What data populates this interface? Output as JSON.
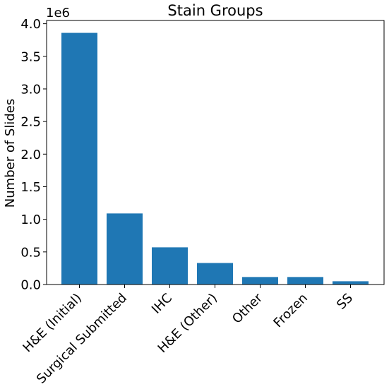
{
  "chart_data": {
    "type": "bar",
    "title": "Stain Groups",
    "xlabel": "",
    "ylabel": "Number of Slides",
    "y_offset_label": "1e6",
    "y_scale": 1000000,
    "ylim": [
      0,
      4.05
    ],
    "yticks": [
      0.0,
      0.5,
      1.0,
      1.5,
      2.0,
      2.5,
      3.0,
      3.5,
      4.0
    ],
    "categories": [
      "H&E (Initial)",
      "Surgical Submitted",
      "IHC",
      "H&E (Other)",
      "Other",
      "Frozen",
      "SS"
    ],
    "values": [
      3860000,
      1090000,
      570000,
      330000,
      115000,
      115000,
      50000
    ],
    "bar_color": "#1f77b4",
    "grid": false,
    "legend": "none"
  }
}
